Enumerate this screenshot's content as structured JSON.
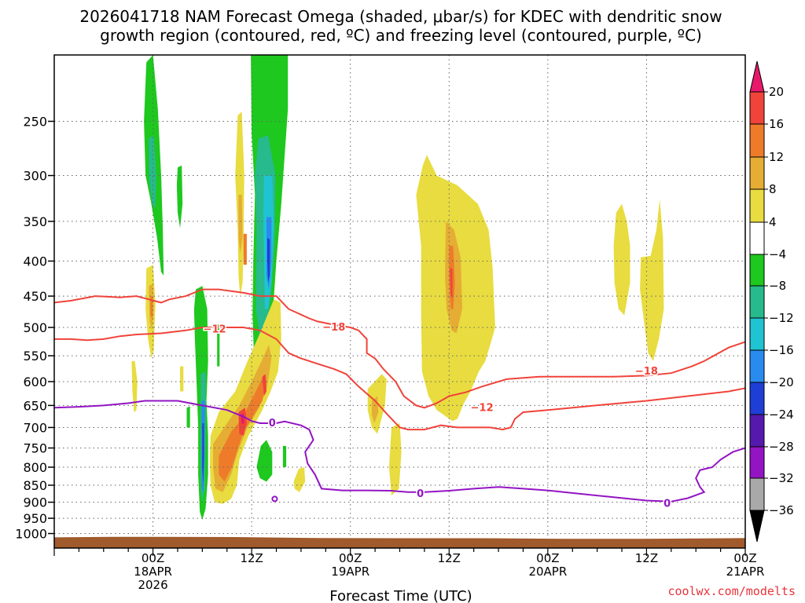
{
  "title_lines": [
    "2026041718 NAM Forecast Omega (shaded, μbar/s) for KDEC with dendritic snow",
    "growth region (contoured, red, ºC) and freezing level (contoured, purple, ºC)"
  ],
  "credit": "coolwx.com/modelts",
  "chart_data": {
    "type": "heatmap",
    "xlabel": "Forecast Time (UTC)",
    "x_range_hours": [
      -12,
      72
    ],
    "x_ticks": [
      {
        "hour": 0,
        "lines": [
          "00Z",
          "18APR",
          "2026"
        ]
      },
      {
        "hour": 12,
        "lines": [
          "12Z"
        ]
      },
      {
        "hour": 24,
        "lines": [
          "00Z",
          "19APR"
        ]
      },
      {
        "hour": 36,
        "lines": [
          "12Z"
        ]
      },
      {
        "hour": 48,
        "lines": [
          "00Z",
          "20APR"
        ]
      },
      {
        "hour": 60,
        "lines": [
          "12Z"
        ]
      },
      {
        "hour": 72,
        "lines": [
          "00Z",
          "21APR"
        ]
      }
    ],
    "y_axis": {
      "scale": "log-pressure",
      "range_hPa": [
        200,
        1050
      ],
      "ticks": [
        250,
        300,
        350,
        400,
        450,
        500,
        550,
        600,
        650,
        700,
        750,
        800,
        850,
        900,
        950,
        1000
      ]
    },
    "colorbar": {
      "tick_labels": [
        "20",
        "16",
        "12",
        "8",
        "4",
        "−4",
        "−8",
        "−12",
        "−16",
        "−20",
        "−24",
        "−28",
        "−32",
        "−36"
      ],
      "colors": [
        "#e8196b",
        "#f0433a",
        "#ee7b2a",
        "#e5ad34",
        "#e8dc40",
        "#ffffff",
        "#1ec81e",
        "#27ba8c",
        "#20c3d2",
        "#2a8bef",
        "#1e3ed6",
        "#5519ad",
        "#9314c3",
        "#a9a9a9",
        "#000000"
      ]
    },
    "contour_labels": [
      {
        "text": "−12",
        "color": "#f0433a",
        "hour": 7.5,
        "p": 503
      },
      {
        "text": "−18",
        "color": "#f0433a",
        "hour": 22,
        "p": 500
      },
      {
        "text": "−18",
        "color": "#f0433a",
        "hour": 60,
        "p": 580
      },
      {
        "text": "−12",
        "color": "#f0433a",
        "hour": 40,
        "p": 655
      },
      {
        "text": "0",
        "color": "#9314c3",
        "hour": 14.5,
        "p": 690
      },
      {
        "text": "0",
        "color": "#9314c3",
        "hour": 32.5,
        "p": 875
      },
      {
        "text": "0",
        "color": "#9314c3",
        "hour": 62.5,
        "p": 905
      }
    ],
    "colors": {
      "snow_growth": "#f0433a",
      "freezing": "#9314c3",
      "terrain": "#a05a2c"
    }
  }
}
